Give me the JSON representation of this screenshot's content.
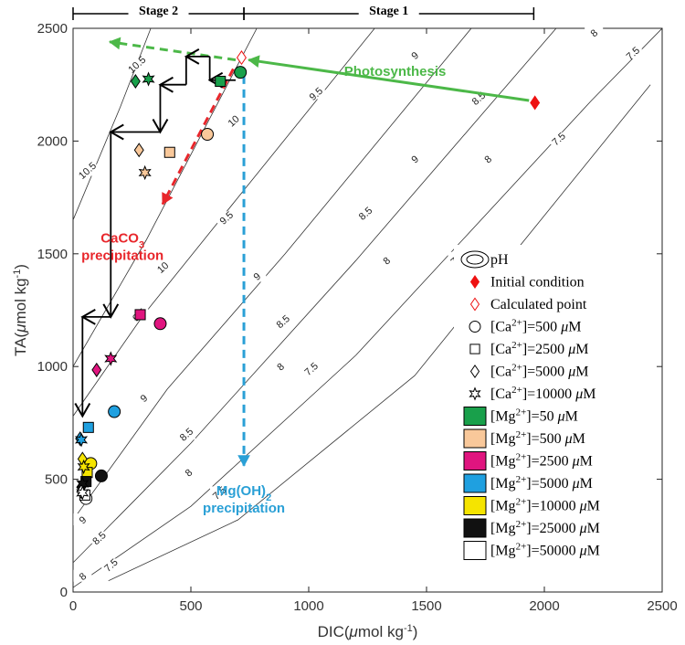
{
  "chart_data": {
    "type": "scatter",
    "xlabel": {
      "main": "DIC(",
      "mu": "μ",
      "rest": "mol kg",
      "sup": "-1",
      "close": ")"
    },
    "ylabel": {
      "main": "TA(",
      "mu": "μ",
      "rest": "mol kg",
      "sup": "-1",
      "close": ")"
    },
    "xlim": [
      0,
      2500
    ],
    "ylim": [
      0,
      2500
    ],
    "xticks": [
      "0",
      "500",
      "1000",
      "1500",
      "2000",
      "2500"
    ],
    "yticks": [
      "0",
      "500",
      "1000",
      "1500",
      "2000",
      "2500"
    ],
    "stages": [
      {
        "label": "Stage 2",
        "x_range": [
          0,
          725
        ]
      },
      {
        "label": "Stage 1",
        "x_range": [
          725,
          1955
        ]
      }
    ],
    "ph_contours": [
      {
        "label": "10.5",
        "points": [
          [
            0,
            1650
          ],
          [
            200,
            2150
          ],
          [
            330,
            2500
          ]
        ],
        "labels_at": [
          [
            60,
            1870
          ],
          [
            270,
            2340
          ]
        ]
      },
      {
        "label": "10",
        "points": [
          [
            0,
            1000
          ],
          [
            310,
            1560
          ],
          [
            530,
            2000
          ],
          [
            780,
            2500
          ]
        ],
        "labels_at": [
          [
            380,
            1440
          ],
          [
            680,
            2090
          ]
        ]
      },
      {
        "label": "9.5",
        "points": [
          [
            0,
            780
          ],
          [
            300,
            1230
          ],
          [
            700,
            1750
          ],
          [
            1280,
            2500
          ]
        ],
        "labels_at": [
          [
            280,
            1230
          ],
          [
            650,
            1660
          ],
          [
            1030,
            2210
          ]
        ]
      },
      {
        "label": "9",
        "points": [
          [
            0,
            320
          ],
          [
            400,
            900
          ],
          [
            900,
            1500
          ],
          [
            1690,
            2500
          ]
        ],
        "labels_at": [
          [
            40,
            320
          ],
          [
            300,
            860
          ],
          [
            780,
            1400
          ],
          [
            1450,
            1920
          ],
          [
            1450,
            2380
          ]
        ]
      },
      {
        "label": "8.5",
        "points": [
          [
            0,
            130
          ],
          [
            500,
            660
          ],
          [
            1200,
            1470
          ],
          [
            2050,
            2500
          ]
        ],
        "labels_at": [
          [
            110,
            240
          ],
          [
            480,
            700
          ],
          [
            890,
            1200
          ],
          [
            1240,
            1680
          ],
          [
            1720,
            2190
          ]
        ]
      },
      {
        "label": "8",
        "points": [
          [
            0,
            20
          ],
          [
            500,
            380
          ],
          [
            1200,
            1050
          ],
          [
            2200,
            2180
          ],
          [
            2500,
            2500
          ]
        ],
        "labels_at": [
          [
            40,
            70
          ],
          [
            490,
            530
          ],
          [
            880,
            1000
          ],
          [
            1330,
            1470
          ],
          [
            1760,
            1920
          ],
          [
            2210,
            2480
          ]
        ]
      },
      {
        "label": "7.5",
        "points": [
          [
            150,
            50
          ],
          [
            700,
            320
          ],
          [
            1450,
            960
          ],
          [
            2450,
            2250
          ]
        ],
        "labels_at": [
          [
            160,
            120
          ],
          [
            620,
            440
          ],
          [
            1010,
            990
          ],
          [
            1630,
            1480
          ],
          [
            2060,
            2010
          ],
          [
            2375,
            2390
          ]
        ]
      }
    ],
    "series": [
      {
        "name": "Initial condition",
        "ca": null,
        "mg": null,
        "marker": "diamond",
        "fill": "#ee1111",
        "stroke": "#ee1111",
        "points": [
          [
            1960,
            2170
          ]
        ]
      },
      {
        "name": "Calculated point",
        "ca": null,
        "mg": null,
        "marker": "diamond",
        "fill": "#ffffff",
        "stroke": "#ee1111",
        "points": [
          [
            715,
            2370
          ]
        ]
      },
      {
        "mg": "50",
        "ca": "500",
        "marker": "circle",
        "fill": "#19a04b",
        "points": [
          [
            710,
            2305
          ]
        ]
      },
      {
        "mg": "50",
        "ca": "2500",
        "marker": "square",
        "fill": "#19a04b",
        "points": [
          [
            625,
            2265
          ]
        ]
      },
      {
        "mg": "50",
        "ca": "5000",
        "marker": "diamond",
        "fill": "#19a04b",
        "points": [
          [
            265,
            2265
          ]
        ]
      },
      {
        "mg": "50",
        "ca": "10000",
        "marker": "star",
        "fill": "#19a04b",
        "points": [
          [
            320,
            2275
          ]
        ]
      },
      {
        "mg": "500",
        "ca": "500",
        "marker": "circle",
        "fill": "#f9c89a",
        "points": [
          [
            570,
            2030
          ]
        ]
      },
      {
        "mg": "500",
        "ca": "2500",
        "marker": "square",
        "fill": "#f9c89a",
        "points": [
          [
            410,
            1950
          ]
        ]
      },
      {
        "mg": "500",
        "ca": "5000",
        "marker": "diamond",
        "fill": "#f9c89a",
        "points": [
          [
            280,
            1960
          ]
        ]
      },
      {
        "mg": "500",
        "ca": "10000",
        "marker": "star",
        "fill": "#f9c89a",
        "points": [
          [
            305,
            1860
          ]
        ]
      },
      {
        "mg": "2500",
        "ca": "500",
        "marker": "circle",
        "fill": "#e0157f",
        "points": [
          [
            370,
            1190
          ]
        ]
      },
      {
        "mg": "2500",
        "ca": "2500",
        "marker": "square",
        "fill": "#e0157f",
        "points": [
          [
            285,
            1230
          ]
        ]
      },
      {
        "mg": "2500",
        "ca": "5000",
        "marker": "diamond",
        "fill": "#e0157f",
        "points": [
          [
            100,
            985
          ]
        ]
      },
      {
        "mg": "2500",
        "ca": "10000",
        "marker": "star",
        "fill": "#e0157f",
        "points": [
          [
            160,
            1035
          ]
        ]
      },
      {
        "mg": "5000",
        "ca": "500",
        "marker": "circle",
        "fill": "#1fa0e0",
        "points": [
          [
            175,
            800
          ]
        ]
      },
      {
        "mg": "5000",
        "ca": "2500",
        "marker": "square",
        "fill": "#1fa0e0",
        "points": [
          [
            65,
            730
          ]
        ]
      },
      {
        "mg": "5000",
        "ca": "5000",
        "marker": "diamond",
        "fill": "#1fa0e0",
        "points": [
          [
            30,
            680
          ]
        ]
      },
      {
        "mg": "5000",
        "ca": "10000",
        "marker": "star",
        "fill": "#1fa0e0",
        "points": [
          [
            35,
            675
          ]
        ]
      },
      {
        "mg": "10000",
        "ca": "500",
        "marker": "circle",
        "fill": "#f5e400",
        "points": [
          [
            75,
            570
          ]
        ]
      },
      {
        "mg": "10000",
        "ca": "2500",
        "marker": "square",
        "fill": "#f5e400",
        "points": [
          [
            60,
            530
          ]
        ]
      },
      {
        "mg": "10000",
        "ca": "5000",
        "marker": "diamond",
        "fill": "#f5e400",
        "points": [
          [
            40,
            590
          ]
        ]
      },
      {
        "mg": "10000",
        "ca": "10000",
        "marker": "star",
        "fill": "#f5e400",
        "points": [
          [
            45,
            555
          ]
        ]
      },
      {
        "mg": "25000",
        "ca": "500",
        "marker": "circle",
        "fill": "#111111",
        "points": [
          [
            120,
            515
          ]
        ]
      },
      {
        "mg": "25000",
        "ca": "2500",
        "marker": "square",
        "fill": "#111111",
        "points": [
          [
            55,
            490
          ]
        ]
      },
      {
        "mg": "25000",
        "ca": "5000",
        "marker": "diamond",
        "fill": "#111111",
        "points": [
          [
            35,
            465
          ]
        ]
      },
      {
        "mg": "25000",
        "ca": "10000",
        "marker": "star",
        "fill": "#111111",
        "points": [
          [
            40,
            480
          ]
        ]
      },
      {
        "mg": "50000",
        "ca": "500",
        "marker": "circle",
        "fill": "#ffffff",
        "points": [
          [
            55,
            415
          ]
        ]
      },
      {
        "mg": "50000",
        "ca": "2500",
        "marker": "square",
        "fill": "#ffffff",
        "points": [
          [
            50,
            430
          ]
        ]
      },
      {
        "mg": "50000",
        "ca": "5000",
        "marker": "diamond",
        "fill": "#ffffff",
        "points": [
          [
            35,
            445
          ]
        ]
      },
      {
        "mg": "50000",
        "ca": "10000",
        "marker": "star",
        "fill": "#ffffff",
        "points": [
          [
            40,
            440
          ]
        ]
      }
    ],
    "process_arrows": [
      {
        "name": "photosynthesis",
        "label": "Photosynthesis",
        "color": "#4cb848",
        "dashed": false,
        "from": [
          1935,
          2180
        ],
        "to": [
          745,
          2360
        ],
        "label_at": [
          1150,
          2290
        ]
      },
      {
        "name": "stage2-green",
        "label": "",
        "color": "#4cb848",
        "dashed": true,
        "from": [
          690,
          2360
        ],
        "to": [
          155,
          2440
        ]
      },
      {
        "name": "caco3",
        "label": "CaCO₃ precipitation",
        "label_main": "CaCO",
        "label_sub": "3",
        "label_line2": "precipitation",
        "color": "#e8262b",
        "dashed": true,
        "from": [
          680,
          2320
        ],
        "to": [
          380,
          1720
        ],
        "label_at": [
          210,
          1550
        ]
      },
      {
        "name": "mgoh2",
        "label": "Mg(OH)₂ precipitation",
        "label_main": "Mg(OH)",
        "label_sub": "2",
        "label_line2": "precipitation",
        "color": "#2aa0d6",
        "dashed": true,
        "from": [
          725,
          2290
        ],
        "to": [
          725,
          560
        ],
        "label_at": [
          725,
          430
        ]
      }
    ],
    "staircase": [
      [
        [
          690,
          2270
        ],
        [
          580,
          2270
        ]
      ],
      [
        [
          580,
          2270
        ],
        [
          580,
          2375
        ]
      ],
      [
        [
          580,
          2375
        ],
        [
          480,
          2375
        ]
      ],
      [
        [
          480,
          2375
        ],
        [
          480,
          2250
        ]
      ],
      [
        [
          480,
          2250
        ],
        [
          370,
          2250
        ]
      ],
      [
        [
          370,
          2250
        ],
        [
          370,
          2040
        ]
      ],
      [
        [
          370,
          2040
        ],
        [
          160,
          2040
        ]
      ],
      [
        [
          160,
          2040
        ],
        [
          160,
          1220
        ]
      ],
      [
        [
          160,
          1220
        ],
        [
          40,
          1220
        ]
      ],
      [
        [
          40,
          1220
        ],
        [
          40,
          780
        ]
      ]
    ],
    "staircase_heads": [
      {
        "from": [
          480,
          2250
        ],
        "to": [
          370,
          2250
        ]
      },
      {
        "from": [
          370,
          2250
        ],
        "to": [
          370,
          2040
        ]
      },
      {
        "from": [
          370,
          2040
        ],
        "to": [
          160,
          2040
        ]
      },
      {
        "from": [
          160,
          2040
        ],
        "to": [
          160,
          1220
        ]
      },
      {
        "from": [
          160,
          1220
        ],
        "to": [
          40,
          1220
        ]
      },
      {
        "from": [
          40,
          1220
        ],
        "to": [
          40,
          780
        ]
      },
      {
        "from": [
          580,
          2375
        ],
        "to": [
          480,
          2375
        ]
      },
      {
        "from": [
          690,
          2270
        ],
        "to": [
          580,
          2270
        ]
      }
    ],
    "legend": {
      "ph_label": "pH",
      "initial_label": "Initial condition",
      "calculated_label": "Calculated point",
      "ca_items": [
        {
          "marker": "circle",
          "conc": "500"
        },
        {
          "marker": "square",
          "conc": "2500"
        },
        {
          "marker": "diamond",
          "conc": "5000"
        },
        {
          "marker": "star",
          "conc": "10000"
        }
      ],
      "mg_items": [
        {
          "color": "#19a04b",
          "conc": "50"
        },
        {
          "color": "#f9c89a",
          "conc": "500"
        },
        {
          "color": "#e0157f",
          "conc": "2500"
        },
        {
          "color": "#1fa0e0",
          "conc": "5000"
        },
        {
          "color": "#f5e400",
          "conc": "10000"
        },
        {
          "color": "#111111",
          "conc": "25000"
        },
        {
          "color": "#ffffff",
          "conc": "50000"
        }
      ],
      "ca_prefix": "[Ca",
      "ca_sup": "2+",
      "mg_prefix": "[Mg",
      "mg_sup": "2+",
      "eq": "]=",
      "mu": "μ",
      "unit": "M"
    }
  }
}
